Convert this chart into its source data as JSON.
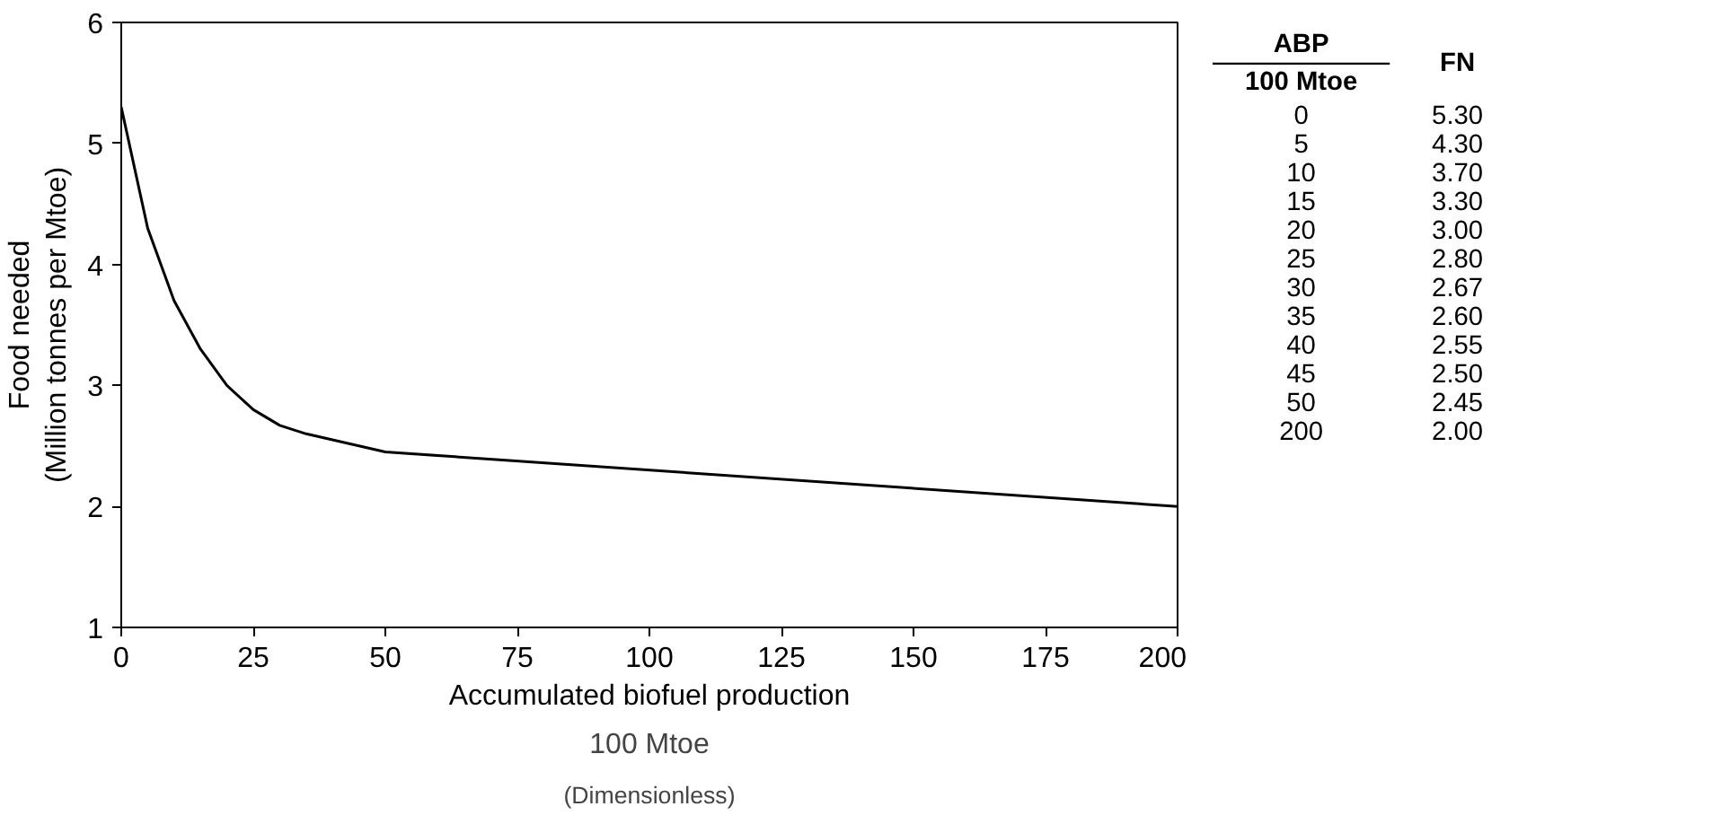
{
  "chart_data": {
    "type": "line",
    "xlabel": "Accumulated biofuel production",
    "ylabel": "Food needed\n(Million tonnes per Mtoe)",
    "annotations": [
      "100 Mtoe",
      "(Dimensionless)",
      "ABP",
      "100 Mtoe",
      "FN",
      "0",
      "5.30",
      "5",
      "4.30",
      "10",
      "3.70",
      "15",
      "3.30",
      "20",
      "3.00",
      "25",
      "2.80",
      "30",
      "2.67",
      "35",
      "2.60",
      "40",
      "2.55",
      "45",
      "2.50",
      "50",
      "2.45",
      "200",
      "2.00"
    ],
    "x": [
      0,
      5,
      10,
      15,
      20,
      25,
      30,
      35,
      40,
      45,
      50,
      200
    ],
    "series": [
      {
        "color": "#000000",
        "values": [
          5.3,
          4.3,
          3.7,
          3.3,
          3.0,
          2.8,
          2.67,
          2.6,
          2.55,
          2.5,
          2.45,
          2.0
        ]
      }
    ],
    "xlim": [
      0,
      200
    ],
    "xticks": [
      0,
      25,
      50,
      75,
      100,
      125,
      150,
      175,
      200
    ],
    "ylim": [
      1,
      6
    ],
    "yticks": [
      1,
      2,
      3,
      4,
      5,
      6
    ],
    "grid": false,
    "marker": "none",
    "line_style": "solid"
  }
}
